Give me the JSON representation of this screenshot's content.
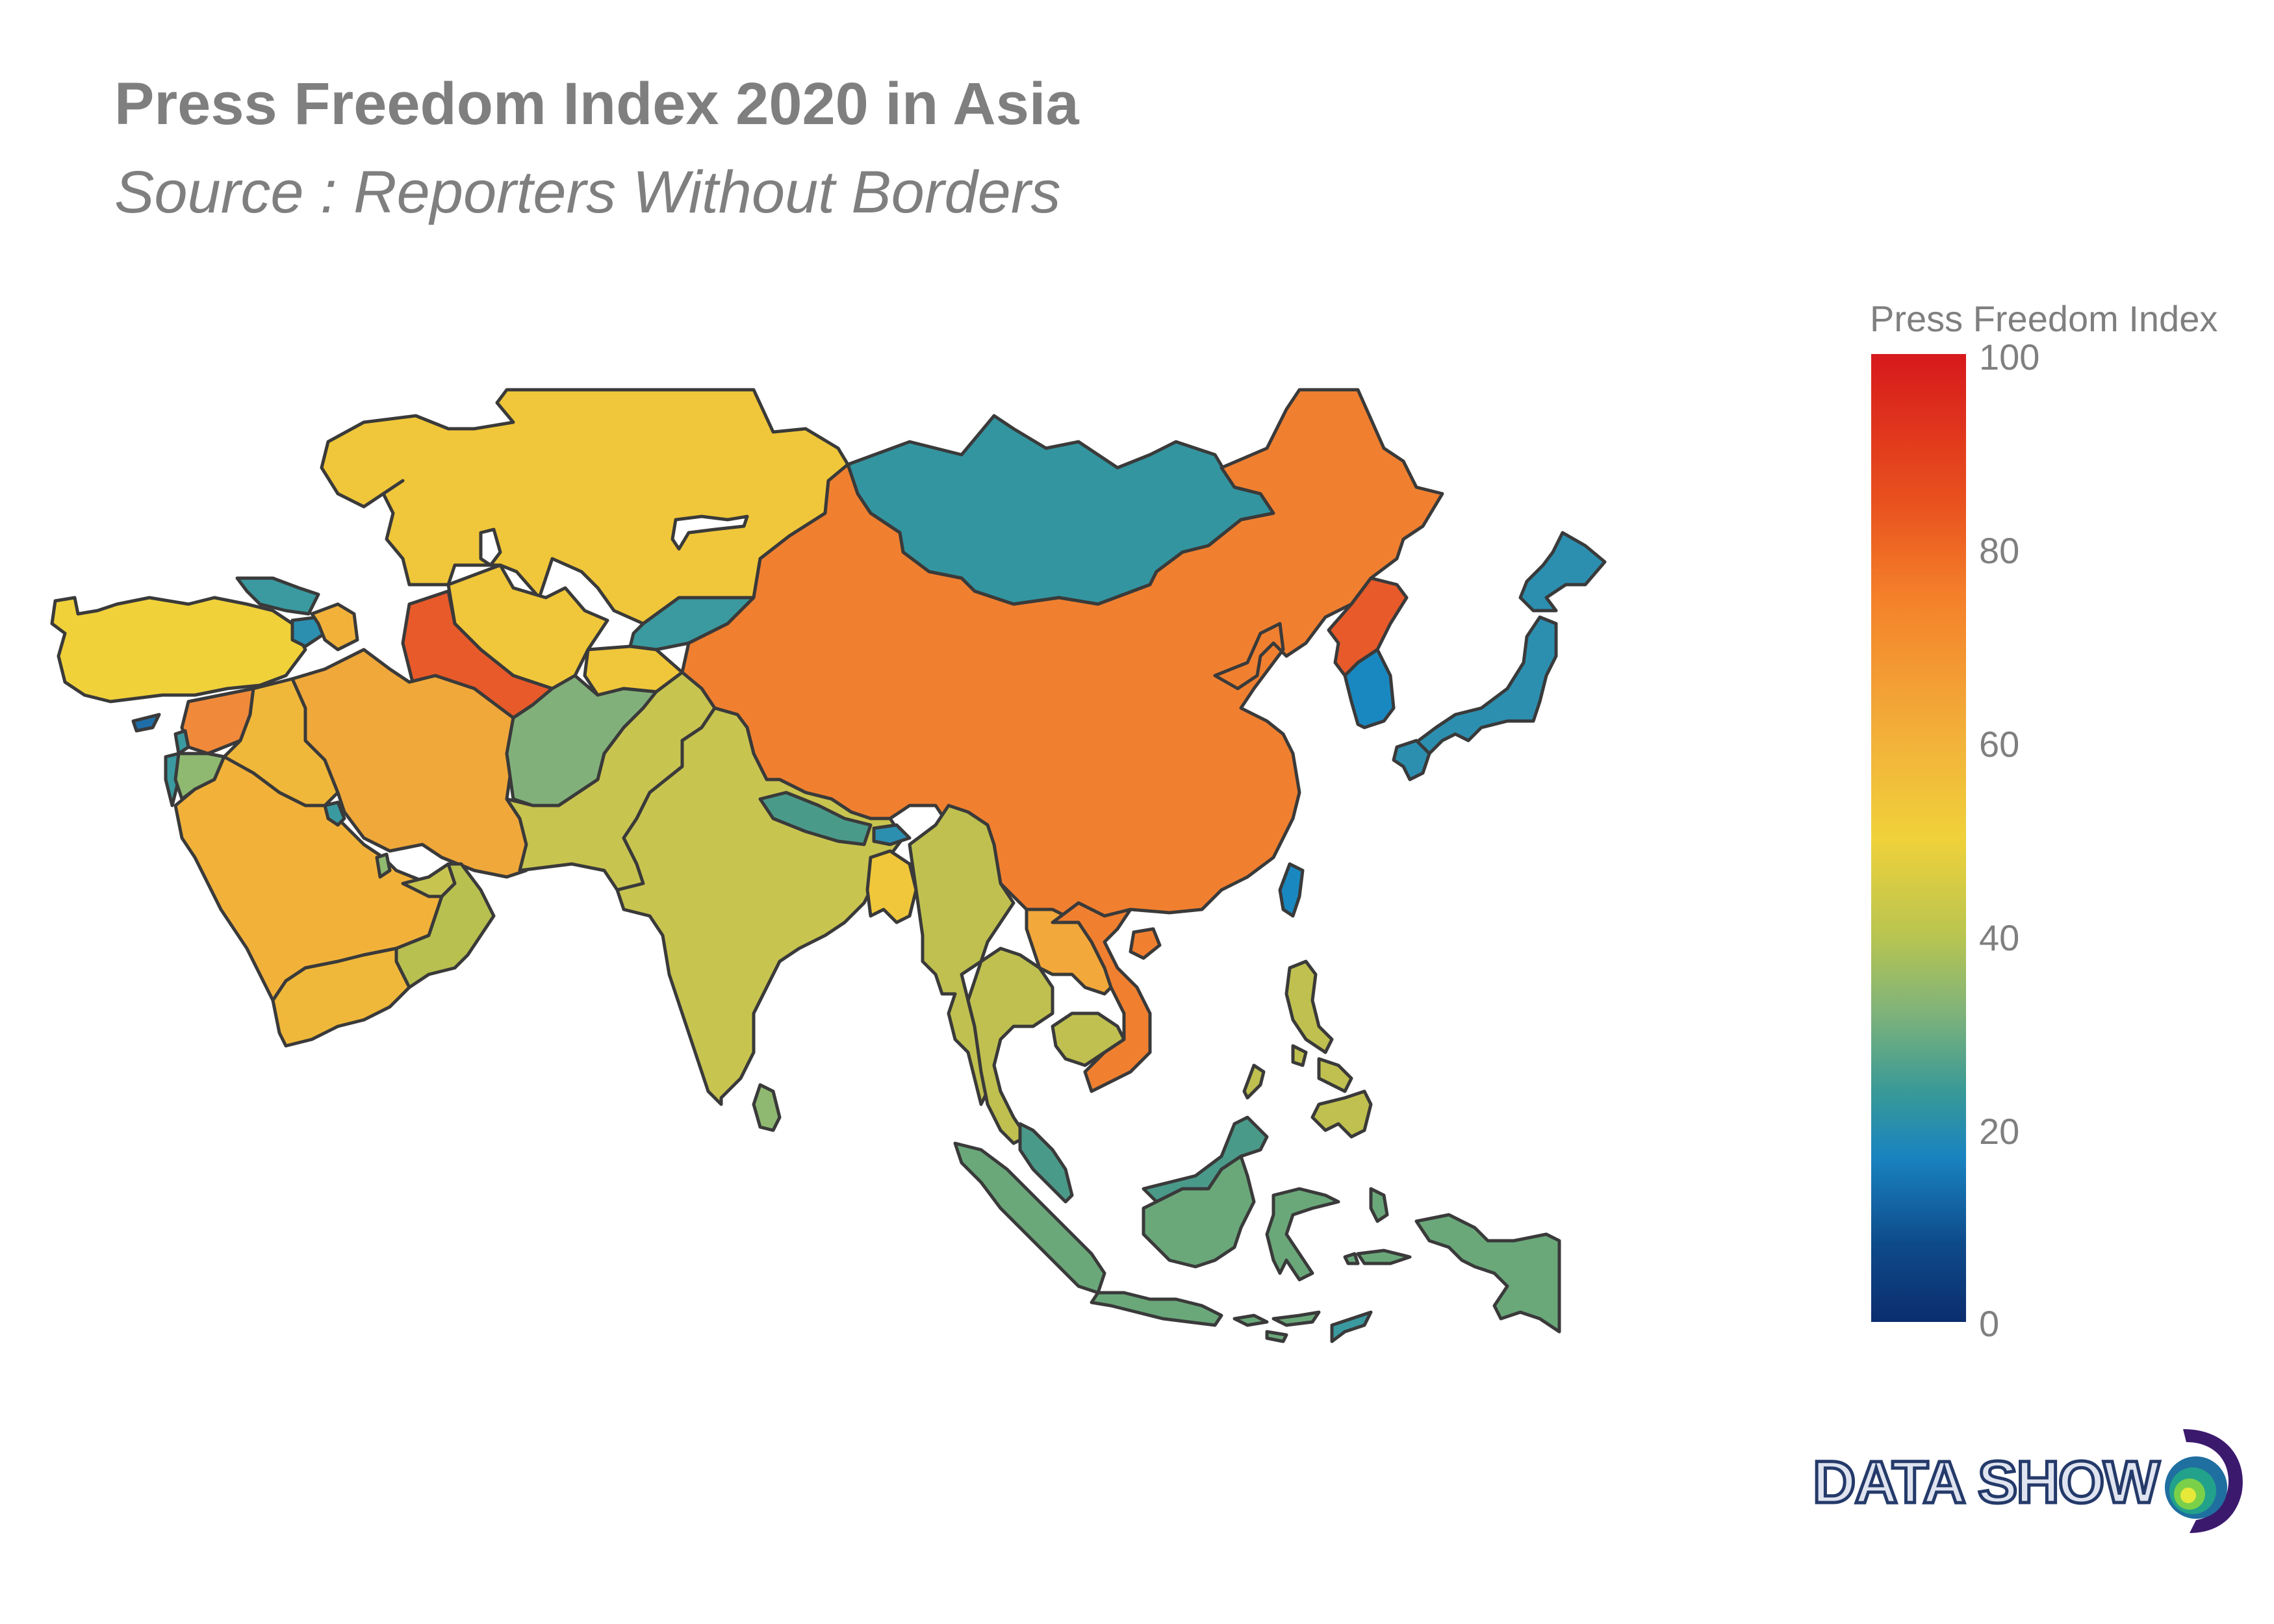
{
  "title": "Press Freedom Index 2020 in Asia",
  "subtitle": "Source : Reporters Without Borders",
  "legend": {
    "title": "Press Freedom Index",
    "min": 0,
    "max": 100,
    "ticks": [
      "100",
      "80",
      "60",
      "40",
      "20",
      "0"
    ]
  },
  "brand": "DATA SHOW",
  "colors": {
    "text": "#7f7f7f",
    "outline": "#3a3a3a",
    "scale": [
      "#0b2d6e",
      "#1983c0",
      "#3a9a96",
      "#7fb37a",
      "#b9c550",
      "#f0d13a",
      "#f2b23a",
      "#f4802a",
      "#e8501e",
      "#d7191c"
    ]
  }
}
